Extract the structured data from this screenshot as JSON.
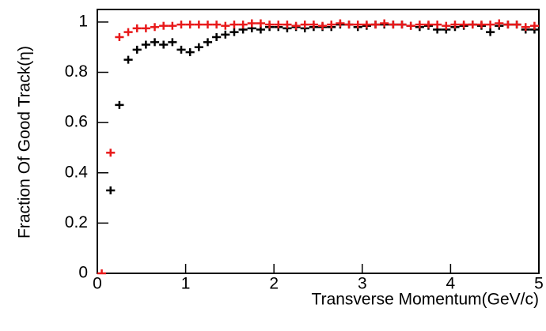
{
  "chart_data": {
    "type": "errorbar",
    "x_label": "Transverse Momentum(GeV/c)",
    "y_label": "Fraction Of Good Track(η)",
    "x": [
      0.05,
      0.15,
      0.25,
      0.35,
      0.45,
      0.55,
      0.65,
      0.75,
      0.85,
      0.95,
      1.05,
      1.15,
      1.25,
      1.35,
      1.45,
      1.55,
      1.65,
      1.75,
      1.85,
      1.95,
      2.05,
      2.15,
      2.25,
      2.35,
      2.45,
      2.55,
      2.65,
      2.75,
      2.85,
      2.95,
      3.05,
      3.15,
      3.25,
      3.35,
      3.45,
      3.55,
      3.65,
      3.75,
      3.85,
      3.95,
      4.05,
      4.15,
      4.25,
      4.35,
      4.45,
      4.55,
      4.65,
      4.75,
      4.85,
      4.95
    ],
    "xerr": 0.05,
    "series": [
      {
        "color": "#000000",
        "values": [
          null,
          0.33,
          0.67,
          0.85,
          0.89,
          0.91,
          0.92,
          0.91,
          0.92,
          0.89,
          0.88,
          0.9,
          0.92,
          0.94,
          0.95,
          0.96,
          0.97,
          0.975,
          0.97,
          0.98,
          0.98,
          0.975,
          0.98,
          0.975,
          0.98,
          0.98,
          0.98,
          0.99,
          0.99,
          0.98,
          0.985,
          0.99,
          0.99,
          0.99,
          0.99,
          0.985,
          0.98,
          0.985,
          0.97,
          0.97,
          0.98,
          0.985,
          0.99,
          0.985,
          0.96,
          0.985,
          0.99,
          0.99,
          0.97,
          0.97
        ]
      },
      {
        "color": "#e8191a",
        "values": [
          0,
          0.48,
          0.94,
          0.96,
          0.975,
          0.975,
          0.98,
          0.985,
          0.985,
          0.99,
          0.99,
          0.99,
          0.99,
          0.99,
          0.985,
          0.99,
          0.99,
          0.995,
          0.995,
          0.99,
          0.99,
          0.99,
          0.985,
          0.99,
          0.99,
          0.985,
          0.99,
          0.995,
          0.99,
          0.99,
          0.99,
          0.99,
          0.995,
          0.99,
          0.99,
          0.985,
          0.99,
          0.99,
          0.99,
          0.985,
          0.99,
          0.99,
          0.99,
          0.99,
          0.99,
          0.995,
          0.99,
          0.99,
          0.98,
          0.985
        ]
      }
    ],
    "xlim": [
      0,
      5
    ],
    "xticks": [
      0,
      1,
      2,
      3,
      4,
      5
    ],
    "ylim": [
      0,
      1.05
    ],
    "yticks": [
      0,
      0.2,
      0.4,
      0.6,
      0.8,
      1
    ]
  }
}
